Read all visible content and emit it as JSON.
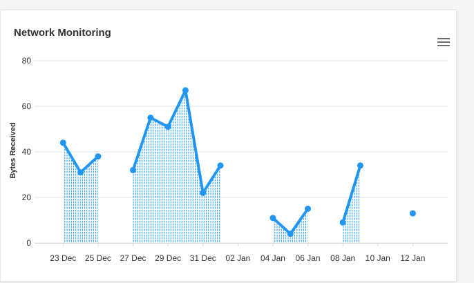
{
  "card": {
    "title": "Network Monitoring",
    "menu_icon": "hamburger-menu-icon"
  },
  "colors": {
    "series": "#2196f3",
    "grid": "#e6e6e6",
    "text": "#333333"
  },
  "chart_data": {
    "type": "line",
    "title": "Network Monitoring",
    "xlabel": "",
    "ylabel": "Bytes Received",
    "ylim": [
      0,
      80
    ],
    "yticks": [
      0,
      20,
      40,
      60,
      80
    ],
    "xlim": [
      "2017-12-22",
      "2018-01-14"
    ],
    "xticks": [
      {
        "date": "2017-12-23",
        "label": "23 Dec"
      },
      {
        "date": "2017-12-25",
        "label": "25 Dec"
      },
      {
        "date": "2017-12-27",
        "label": "27 Dec"
      },
      {
        "date": "2017-12-29",
        "label": "29 Dec"
      },
      {
        "date": "2017-12-31",
        "label": "31 Dec"
      },
      {
        "date": "2018-01-02",
        "label": "02 Jan"
      },
      {
        "date": "2018-01-04",
        "label": "04 Jan"
      },
      {
        "date": "2018-01-06",
        "label": "06 Jan"
      },
      {
        "date": "2018-01-08",
        "label": "08 Jan"
      },
      {
        "date": "2018-01-10",
        "label": "10 Jan"
      },
      {
        "date": "2018-01-12",
        "label": "12 Jan"
      }
    ],
    "grid": true,
    "legend": "none",
    "fill": "vertical-dashed-hatch",
    "series": [
      {
        "segments": [
          [
            {
              "x": "2017-12-23",
              "y": 44
            },
            {
              "x": "2017-12-24",
              "y": 31
            },
            {
              "x": "2017-12-25",
              "y": 38
            }
          ],
          [
            {
              "x": "2017-12-27",
              "y": 32
            },
            {
              "x": "2017-12-28",
              "y": 55
            },
            {
              "x": "2017-12-29",
              "y": 51
            },
            {
              "x": "2017-12-30",
              "y": 67
            },
            {
              "x": "2017-12-31",
              "y": 22
            },
            {
              "x": "2018-01-01",
              "y": 34
            }
          ],
          [
            {
              "x": "2018-01-04",
              "y": 11
            },
            {
              "x": "2018-01-05",
              "y": 4
            },
            {
              "x": "2018-01-06",
              "y": 15
            }
          ],
          [
            {
              "x": "2018-01-08",
              "y": 9
            },
            {
              "x": "2018-01-09",
              "y": 34
            }
          ],
          [
            {
              "x": "2018-01-12",
              "y": 13
            }
          ]
        ]
      }
    ]
  }
}
